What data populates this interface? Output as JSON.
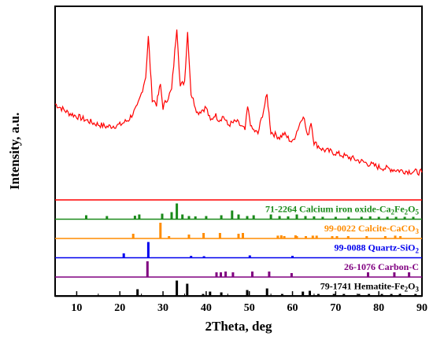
{
  "chart_data": {
    "type": "line",
    "xlabel": "2Theta, deg",
    "ylabel": "Intensity, a.u.",
    "xlim": [
      5,
      90
    ],
    "x_ticks": [
      10,
      20,
      30,
      40,
      50,
      60,
      70,
      80,
      90
    ],
    "colors": {
      "pattern": "#ff0000",
      "calcium_iron_oxide": "#1a8a1a",
      "calcite": "#ff8c00",
      "quartz": "#0000ee",
      "carbon": "#800080",
      "hematite": "#000000"
    },
    "measured_pattern": {
      "x": [
        5,
        8,
        11,
        14,
        17,
        20,
        22,
        24,
        25,
        26,
        26.6,
        27.5,
        28.5,
        29.4,
        30,
        31,
        32,
        33.2,
        34,
        35,
        35.7,
        36.5,
        38,
        40,
        41,
        42,
        43,
        44,
        45,
        47,
        49,
        49.6,
        50.5,
        52,
        54.1,
        55,
        57,
        58,
        60,
        62.5,
        63.5,
        64.3,
        65,
        67,
        70,
        75,
        80,
        85,
        90
      ],
      "y": [
        0.52,
        0.47,
        0.44,
        0.41,
        0.39,
        0.4,
        0.43,
        0.5,
        0.58,
        0.68,
        0.9,
        0.55,
        0.52,
        0.63,
        0.5,
        0.55,
        0.6,
        0.96,
        0.62,
        0.65,
        0.93,
        0.58,
        0.47,
        0.5,
        0.42,
        0.46,
        0.43,
        0.45,
        0.4,
        0.42,
        0.37,
        0.5,
        0.38,
        0.35,
        0.57,
        0.36,
        0.33,
        0.35,
        0.3,
        0.46,
        0.33,
        0.42,
        0.3,
        0.26,
        0.24,
        0.2,
        0.16,
        0.14,
        0.13
      ]
    },
    "reference_patterns": [
      {
        "label_main": "71-2264 Calcium iron oxide-Ca",
        "label_sub1": "2",
        "label_mid": "Fe",
        "label_sub2": "2",
        "label_end": "O",
        "label_sub3": "5",
        "color_key": "calcium_iron_oxide",
        "peaks": [
          [
            12.2,
            0.25
          ],
          [
            17,
            0.2
          ],
          [
            23.5,
            0.22
          ],
          [
            24.5,
            0.3
          ],
          [
            29.8,
            0.35
          ],
          [
            32,
            0.45
          ],
          [
            33.2,
            1.0
          ],
          [
            34.5,
            0.3
          ],
          [
            36,
            0.2
          ],
          [
            37.5,
            0.18
          ],
          [
            40,
            0.2
          ],
          [
            43.5,
            0.25
          ],
          [
            46,
            0.55
          ],
          [
            47.5,
            0.3
          ],
          [
            49.5,
            0.2
          ],
          [
            51,
            0.25
          ],
          [
            55,
            0.3
          ],
          [
            57,
            0.2
          ],
          [
            59,
            0.18
          ],
          [
            61,
            0.3
          ],
          [
            63,
            0.2
          ],
          [
            65,
            0.18
          ],
          [
            67,
            0.15
          ],
          [
            70,
            0.15
          ],
          [
            73,
            0.15
          ],
          [
            76,
            0.15
          ],
          [
            78,
            0.18
          ],
          [
            80,
            0.15
          ],
          [
            82,
            0.15
          ],
          [
            84,
            0.15
          ],
          [
            86,
            0.15
          ],
          [
            88,
            0.15
          ]
        ]
      },
      {
        "label_main": "99-0022 Calcite-CaCO",
        "label_sub1": "3",
        "color_key": "calcite",
        "peaks": [
          [
            23.1,
            0.3
          ],
          [
            29.4,
            1.0
          ],
          [
            31.4,
            0.15
          ],
          [
            36,
            0.25
          ],
          [
            39.4,
            0.35
          ],
          [
            43.2,
            0.35
          ],
          [
            47.5,
            0.3
          ],
          [
            48.5,
            0.35
          ],
          [
            56.6,
            0.18
          ],
          [
            57.4,
            0.2
          ],
          [
            58.1,
            0.15
          ],
          [
            60.7,
            0.2
          ],
          [
            61,
            0.15
          ],
          [
            63.1,
            0.15
          ],
          [
            64.7,
            0.18
          ],
          [
            65.6,
            0.18
          ],
          [
            69.2,
            0.15
          ],
          [
            70.3,
            0.15
          ],
          [
            72.9,
            0.15
          ],
          [
            77.2,
            0.15
          ],
          [
            81.5,
            0.15
          ],
          [
            83.8,
            0.18
          ],
          [
            85,
            0.15
          ]
        ]
      },
      {
        "label_main": "99-0088 Quartz-SiO",
        "label_sub1": "2",
        "color_key": "quartz",
        "peaks": [
          [
            20.9,
            0.28
          ],
          [
            26.6,
            1.0
          ],
          [
            36.5,
            0.12
          ],
          [
            39.5,
            0.1
          ],
          [
            50.1,
            0.15
          ],
          [
            60,
            0.12
          ]
        ]
      },
      {
        "label_main": "26-1076 Carbon-C",
        "color_key": "carbon",
        "peaks": [
          [
            26.4,
            1.0
          ],
          [
            42.4,
            0.3
          ],
          [
            43.4,
            0.3
          ],
          [
            44.5,
            0.35
          ],
          [
            46.2,
            0.3
          ],
          [
            50.7,
            0.35
          ],
          [
            54.6,
            0.35
          ],
          [
            59.8,
            0.25
          ],
          [
            77.5,
            0.3
          ],
          [
            83.6,
            0.3
          ],
          [
            87,
            0.3
          ]
        ]
      },
      {
        "label_main": "79-1741 Hematite-Fe",
        "label_sub1": "2",
        "label_mid": "O",
        "label_sub2": "3",
        "color_key": "hematite",
        "peaks": [
          [
            24.1,
            0.45
          ],
          [
            33.2,
            1.0
          ],
          [
            35.6,
            0.8
          ],
          [
            39.3,
            0.15
          ],
          [
            40.9,
            0.3
          ],
          [
            43.5,
            0.25
          ],
          [
            49.5,
            0.4
          ],
          [
            54.1,
            0.5
          ],
          [
            57.6,
            0.15
          ],
          [
            62.4,
            0.3
          ],
          [
            64,
            0.35
          ],
          [
            66,
            0.15
          ],
          [
            69.6,
            0.15
          ],
          [
            71.9,
            0.15
          ],
          [
            75.4,
            0.15
          ],
          [
            77.7,
            0.15
          ],
          [
            80.7,
            0.15
          ],
          [
            82.9,
            0.15
          ],
          [
            84.9,
            0.15
          ],
          [
            88.5,
            0.15
          ]
        ]
      }
    ]
  }
}
